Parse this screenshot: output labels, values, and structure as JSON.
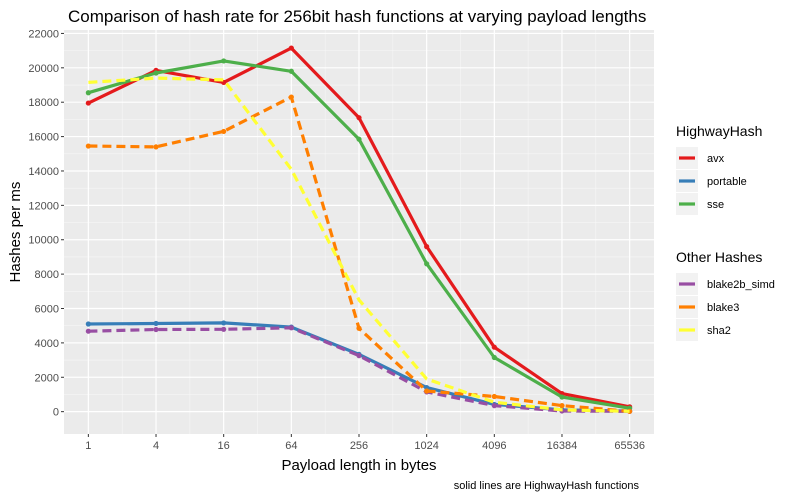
{
  "chart_data": {
    "type": "line",
    "title": "Comparison of hash rate for 256bit hash functions at varying payload lengths",
    "xlabel": "Payload length in bytes",
    "ylabel": "Hashes per ms",
    "caption": "solid lines are HighwayHash functions",
    "x_scale": "log",
    "x": [
      1,
      4,
      16,
      64,
      256,
      1024,
      4096,
      16384,
      65536
    ],
    "x_tick_labels": [
      "1",
      "4",
      "16",
      "64",
      "256",
      "1024",
      "4096",
      "16384",
      "65536"
    ],
    "ylim": [
      -1300,
      22200
    ],
    "y_ticks": [
      0,
      2000,
      4000,
      6000,
      8000,
      10000,
      12000,
      14000,
      16000,
      18000,
      20000,
      22000
    ],
    "grid": true,
    "legend_position": "right",
    "legend_groups": [
      {
        "title": "HighwayHash",
        "series": [
          {
            "name": "avx",
            "color": "#e41a1c",
            "dashed": false,
            "points": true,
            "values": [
              17950,
              19850,
              19150,
              21150,
              17100,
              9600,
              3750,
              1050,
              280
            ]
          },
          {
            "name": "portable",
            "color": "#377eb8",
            "dashed": false,
            "points": true,
            "values": [
              5100,
              5130,
              5160,
              4920,
              3330,
              1400,
              420,
              110,
              30
            ]
          },
          {
            "name": "sse",
            "color": "#4daf4a",
            "dashed": false,
            "points": true,
            "values": [
              18550,
              19700,
              20400,
              19800,
              15850,
              8600,
              3150,
              850,
              200
            ]
          }
        ]
      },
      {
        "title": "Other Hashes",
        "series": [
          {
            "name": "blake2b_simd",
            "color": "#984ea3",
            "dashed": true,
            "points": true,
            "values": [
              4680,
              4780,
              4790,
              4880,
              3260,
              1150,
              350,
              40,
              20
            ]
          },
          {
            "name": "blake3",
            "color": "#ff7f00",
            "dashed": true,
            "points": true,
            "values": [
              15450,
              15400,
              16300,
              18300,
              4850,
              1200,
              880,
              350,
              20
            ]
          },
          {
            "name": "sha2",
            "color": "#ffff33",
            "dashed": true,
            "points": false,
            "values": [
              19150,
              19400,
              19300,
              14100,
              6500,
              1900,
              550,
              100,
              20
            ]
          }
        ]
      }
    ]
  }
}
